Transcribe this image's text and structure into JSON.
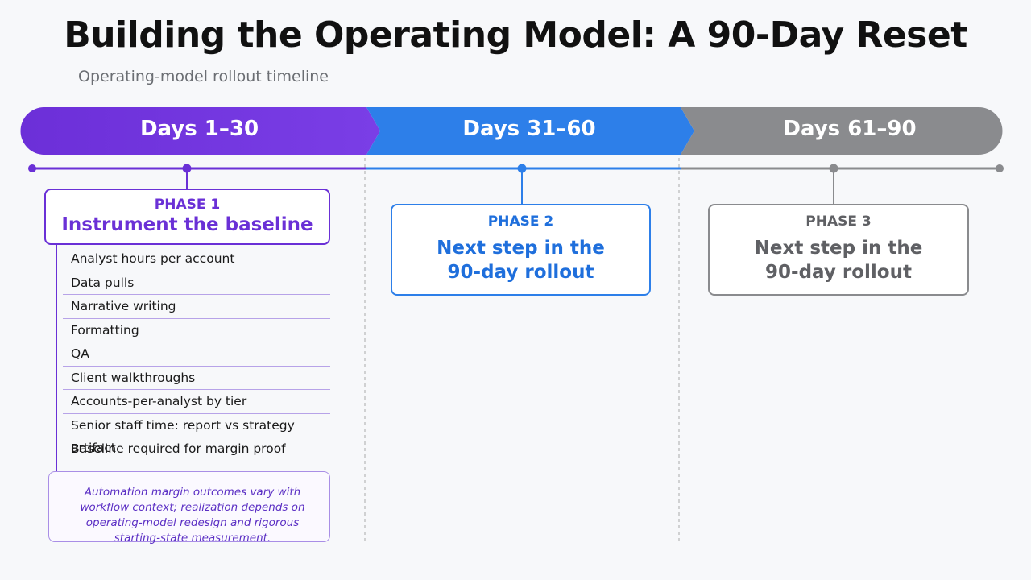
{
  "header": {
    "title": "Building the Operating Model: A 90-Day Reset",
    "subtitle": "Operating-model rollout timeline"
  },
  "phases": [
    {
      "range": "Days 1–30",
      "label": "PHASE 1",
      "heading": "Instrument the baseline",
      "items": [
        "Analyst hours per account",
        "Data pulls",
        "Narrative writing",
        "Formatting",
        "QA",
        "Client walkthroughs",
        "Accounts-per-analyst by tier",
        "Senior staff time: report vs strategy artifact",
        "Baseline required for margin proof"
      ],
      "note": "Automation margin outcomes vary with workflow context; realization depends on operating-model redesign and rigorous starting-state measurement."
    },
    {
      "range": "Days 31–60",
      "label": "PHASE 2",
      "heading": "Next step in the 90-day rollout"
    },
    {
      "range": "Days 61–90",
      "label": "PHASE 3",
      "heading": "Next step in the 90-day rollout"
    }
  ]
}
